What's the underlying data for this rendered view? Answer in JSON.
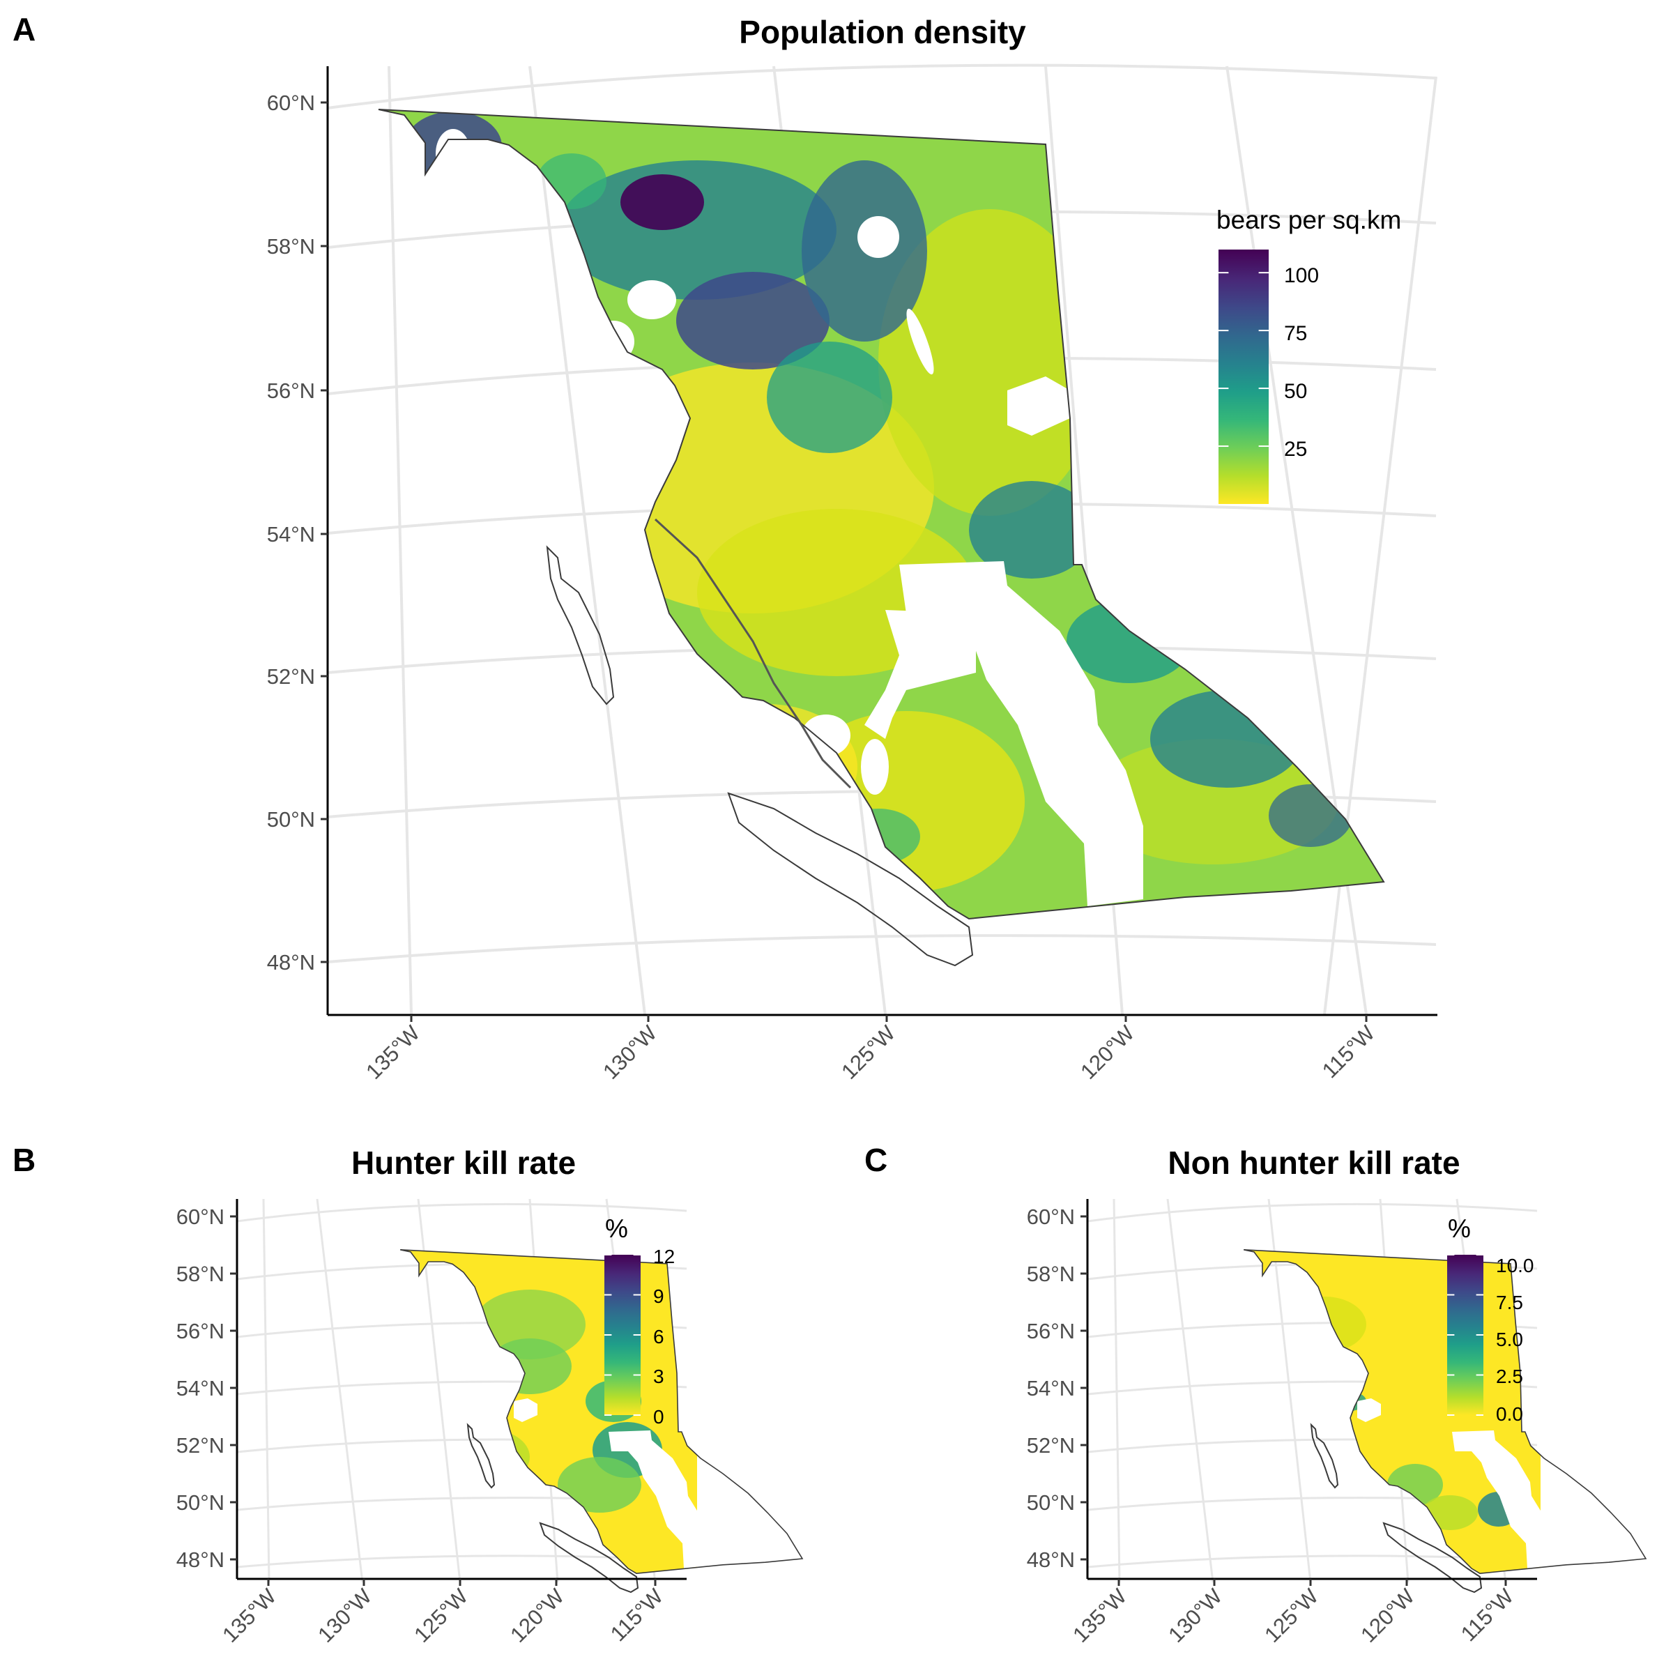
{
  "panels": {
    "A": {
      "letter": "A",
      "title": "Population density",
      "lat_labels": [
        "60°N",
        "58°N",
        "56°N",
        "54°N",
        "52°N",
        "50°N",
        "48°N"
      ],
      "lon_labels": [
        "135°W",
        "130°W",
        "125°W",
        "120°W",
        "115°W"
      ],
      "legend": {
        "title": "bears per sq.km",
        "ticks": [
          "100",
          "75",
          "50",
          "25"
        ],
        "tick_values": [
          100,
          75,
          50,
          25
        ],
        "range": [
          0,
          110
        ]
      }
    },
    "B": {
      "letter": "B",
      "title": "Hunter kill rate",
      "lat_labels": [
        "60°N",
        "58°N",
        "56°N",
        "54°N",
        "52°N",
        "50°N",
        "48°N"
      ],
      "lon_labels": [
        "135°W",
        "130°W",
        "125°W",
        "120°W",
        "115°W"
      ],
      "legend": {
        "title": "%",
        "ticks": [
          "12",
          "9",
          "6",
          "3",
          "0"
        ],
        "tick_values": [
          12,
          9,
          6,
          3,
          0
        ],
        "range": [
          0,
          12
        ]
      }
    },
    "C": {
      "letter": "C",
      "title": "Non hunter kill rate",
      "lat_labels": [
        "60°N",
        "58°N",
        "56°N",
        "54°N",
        "52°N",
        "50°N",
        "48°N"
      ],
      "lon_labels": [
        "135°W",
        "130°W",
        "125°W",
        "120°W",
        "115°W"
      ],
      "legend": {
        "title": "%",
        "ticks": [
          "10.0",
          "7.5",
          "5.0",
          "2.5",
          "0.0"
        ],
        "tick_values": [
          10,
          7.5,
          5,
          2.5,
          0
        ],
        "range": [
          0,
          10
        ]
      }
    }
  },
  "colors": {
    "viridis": [
      "#fde725",
      "#b5de2b",
      "#6ece58",
      "#35b779",
      "#1f9e89",
      "#26828e",
      "#31688e",
      "#3e4989",
      "#482878",
      "#440154"
    ],
    "outline": "#3a3a3a",
    "graticule": "#e6e6e6",
    "axis": "#000000",
    "label": "#4d4d4d"
  }
}
